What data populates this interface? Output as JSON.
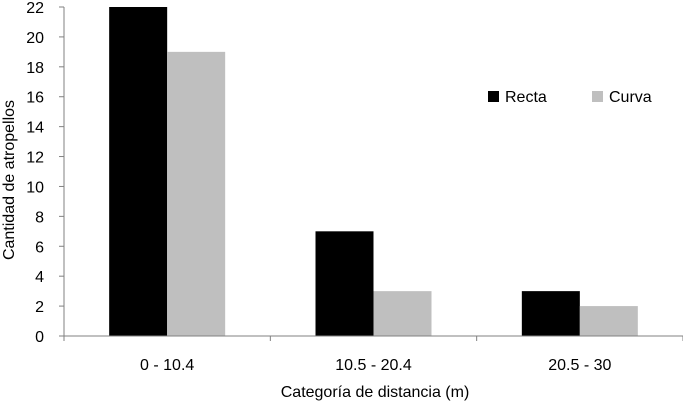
{
  "chart_data": {
    "type": "bar",
    "title": "",
    "xlabel": "Categoría de distancia (m)",
    "ylabel": "Cantidad de atropellos",
    "categories": [
      "0 - 10.4",
      "10.5 - 20.4",
      "20.5 - 30"
    ],
    "series": [
      {
        "name": "Recta",
        "values": [
          22,
          7,
          3
        ],
        "color": "#000000"
      },
      {
        "name": "Curva",
        "values": [
          19,
          3,
          2
        ],
        "color": "#bfbfbf"
      }
    ],
    "ylim": [
      0,
      22
    ],
    "yticks": [
      0,
      2,
      4,
      6,
      8,
      10,
      12,
      14,
      16,
      18,
      20,
      22
    ],
    "grid": false,
    "legend_position": "right"
  }
}
